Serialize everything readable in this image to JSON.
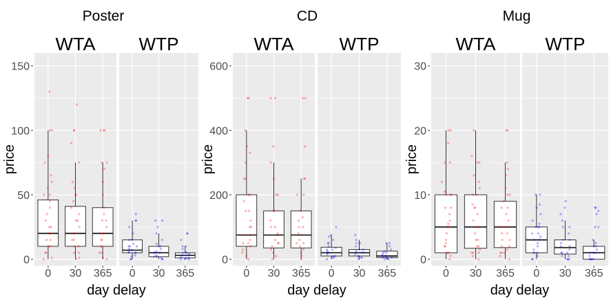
{
  "chart_data": [
    {
      "type": "box",
      "title": "Poster",
      "ylabel": "price",
      "xlabel": "day delay",
      "ylim": [
        -5,
        160
      ],
      "yticks": [
        0,
        50,
        100,
        150
      ],
      "yminor": [
        25,
        75,
        125
      ],
      "categories": [
        "0",
        "30",
        "365"
      ],
      "grid": true,
      "facets": [
        {
          "label": "WTA",
          "color": "#FF0000",
          "boxes": [
            {
              "min": 0,
              "q1": 10,
              "median": 20,
              "q3": 46,
              "max": 100,
              "points": [
                0,
                1,
                5,
                5,
                10,
                10,
                15,
                15,
                20,
                20,
                20,
                25,
                25,
                30,
                35,
                40,
                45,
                50,
                50,
                55,
                60,
                65,
                75,
                80,
                100,
                100,
                130
              ]
            },
            {
              "min": 0,
              "q1": 10,
              "median": 20,
              "q3": 41,
              "max": 75,
              "points": [
                0,
                1,
                5,
                5,
                10,
                10,
                15,
                15,
                20,
                20,
                20,
                25,
                30,
                30,
                35,
                40,
                45,
                50,
                50,
                55,
                60,
                75,
                90,
                100,
                100,
                120
              ]
            },
            {
              "min": 0,
              "q1": 10,
              "median": 20,
              "q3": 40,
              "max": 75,
              "points": [
                0,
                1,
                5,
                5,
                10,
                10,
                15,
                15,
                20,
                20,
                20,
                25,
                30,
                30,
                35,
                40,
                50,
                60,
                70,
                75,
                75,
                100,
                100,
                100
              ]
            }
          ]
        },
        {
          "label": "WTP",
          "color": "#0000FF",
          "boxes": [
            {
              "min": 0,
              "q1": 5,
              "median": 7,
              "q3": 15,
              "max": 30,
              "points": [
                0,
                0,
                2,
                3,
                5,
                5,
                5,
                6,
                7,
                8,
                10,
                10,
                10,
                12,
                15,
                15,
                20,
                25,
                30,
                30,
                35
              ]
            },
            {
              "min": 0,
              "q1": 2,
              "median": 5,
              "q3": 10,
              "max": 20,
              "points": [
                0,
                0,
                1,
                2,
                2,
                3,
                5,
                5,
                5,
                6,
                8,
                10,
                10,
                12,
                15,
                20,
                25,
                30,
                30
              ]
            },
            {
              "min": 0,
              "q1": 1,
              "median": 3,
              "q3": 5,
              "max": 10,
              "points": [
                0,
                0,
                0,
                1,
                1,
                2,
                3,
                3,
                4,
                5,
                5,
                5,
                8,
                10,
                10,
                15,
                20,
                20
              ]
            }
          ]
        }
      ]
    },
    {
      "type": "box",
      "title": "CD",
      "ylabel": "price",
      "xlabel": "day delay",
      "ylim": [
        -20,
        640
      ],
      "yticks": [
        0,
        200,
        400,
        600
      ],
      "yminor": [
        100,
        300,
        500
      ],
      "categories": [
        "0",
        "30",
        "365"
      ],
      "grid": true,
      "facets": [
        {
          "label": "WTA",
          "color": "#FF0000",
          "boxes": [
            {
              "min": 0,
              "q1": 40,
              "median": 75,
              "q3": 200,
              "max": 400,
              "points": [
                0,
                10,
                20,
                30,
                40,
                50,
                50,
                60,
                75,
                75,
                100,
                100,
                120,
                150,
                150,
                180,
                200,
                200,
                250,
                250,
                300,
                330,
                350,
                400,
                500,
                500
              ]
            },
            {
              "min": 0,
              "q1": 35,
              "median": 75,
              "q3": 150,
              "max": 300,
              "points": [
                0,
                10,
                20,
                30,
                40,
                50,
                50,
                60,
                75,
                80,
                100,
                100,
                120,
                150,
                150,
                200,
                200,
                250,
                300,
                350,
                500,
                500
              ]
            },
            {
              "min": 0,
              "q1": 35,
              "median": 75,
              "q3": 150,
              "max": 250,
              "points": [
                0,
                10,
                20,
                30,
                40,
                50,
                50,
                60,
                75,
                80,
                100,
                100,
                120,
                130,
                150,
                200,
                200,
                250,
                250,
                350,
                500,
                500
              ]
            }
          ]
        },
        {
          "label": "WTP",
          "color": "#0000FF",
          "boxes": [
            {
              "min": 0,
              "q1": 10,
              "median": 20,
              "q3": 37,
              "max": 75,
              "points": [
                0,
                5,
                5,
                10,
                10,
                15,
                20,
                20,
                20,
                25,
                30,
                30,
                35,
                40,
                50,
                50,
                60,
                70,
                75,
                100
              ]
            },
            {
              "min": 0,
              "q1": 10,
              "median": 20,
              "q3": 30,
              "max": 60,
              "points": [
                0,
                5,
                5,
                10,
                10,
                15,
                20,
                20,
                20,
                25,
                30,
                30,
                40,
                50,
                50,
                60,
                75
              ]
            },
            {
              "min": 0,
              "q1": 5,
              "median": 10,
              "q3": 25,
              "max": 50,
              "points": [
                0,
                0,
                2,
                5,
                5,
                5,
                10,
                10,
                10,
                15,
                20,
                20,
                25,
                30,
                40,
                50,
                50
              ]
            }
          ]
        }
      ]
    },
    {
      "type": "box",
      "title": "Mug",
      "ylabel": "price",
      "xlabel": "day delay",
      "ylim": [
        -1,
        32
      ],
      "yticks": [
        0,
        10,
        20,
        30
      ],
      "yminor": [
        5,
        15,
        25
      ],
      "categories": [
        "0",
        "30",
        "365"
      ],
      "grid": true,
      "facets": [
        {
          "label": "WTA",
          "color": "#FF0000",
          "boxes": [
            {
              "min": 0,
              "q1": 1,
              "median": 5,
              "q3": 10,
              "max": 20,
              "points": [
                0,
                0.5,
                1,
                1,
                1,
                2,
                2,
                2.5,
                3,
                4,
                5,
                5,
                5,
                5.5,
                6,
                7,
                8,
                8,
                10,
                10,
                10,
                10.5,
                12,
                15,
                15,
                18,
                20,
                20
              ]
            },
            {
              "min": 0,
              "q1": 1.7,
              "median": 5,
              "q3": 10,
              "max": 20,
              "points": [
                0,
                0.5,
                1,
                1,
                1,
                1.5,
                2,
                2,
                3,
                3,
                4,
                5,
                5,
                5,
                6,
                7,
                8,
                8,
                8.5,
                10,
                10,
                11,
                12,
                13,
                15,
                15,
                16,
                20
              ]
            },
            {
              "min": 0,
              "q1": 1.8,
              "median": 5,
              "q3": 9,
              "max": 15,
              "points": [
                0,
                0.5,
                1,
                1,
                1,
                1.5,
                2,
                2,
                3,
                3,
                4,
                4,
                5,
                5,
                5,
                6,
                7,
                8,
                8,
                9,
                10,
                10,
                11,
                13,
                14,
                15,
                20,
                20
              ]
            }
          ]
        },
        {
          "label": "WTP",
          "color": "#0000FF",
          "boxes": [
            {
              "min": 0,
              "q1": 1,
              "median": 3,
              "q3": 5,
              "max": 10,
              "points": [
                0,
                0,
                0.5,
                1,
                1,
                1,
                1.5,
                2,
                2.5,
                3,
                3,
                3.5,
                4,
                4,
                5,
                5,
                5,
                5.5,
                6,
                7,
                8,
                8.5,
                10,
                10
              ]
            },
            {
              "min": 0,
              "q1": 0.8,
              "median": 1.8,
              "q3": 3,
              "max": 6,
              "points": [
                0,
                0,
                0,
                0.5,
                0.5,
                1,
                1,
                1,
                1.5,
                2,
                2,
                2.5,
                3,
                3,
                4,
                5,
                5,
                6,
                7,
                8,
                9
              ]
            },
            {
              "min": 0,
              "q1": 0,
              "median": 1,
              "q3": 2,
              "max": 3,
              "points": [
                0,
                0,
                0,
                0,
                0,
                0.5,
                1,
                1,
                1,
                1.5,
                2,
                2,
                2.5,
                3,
                5,
                5,
                7,
                7.5,
                8,
                8
              ]
            }
          ]
        }
      ]
    }
  ]
}
